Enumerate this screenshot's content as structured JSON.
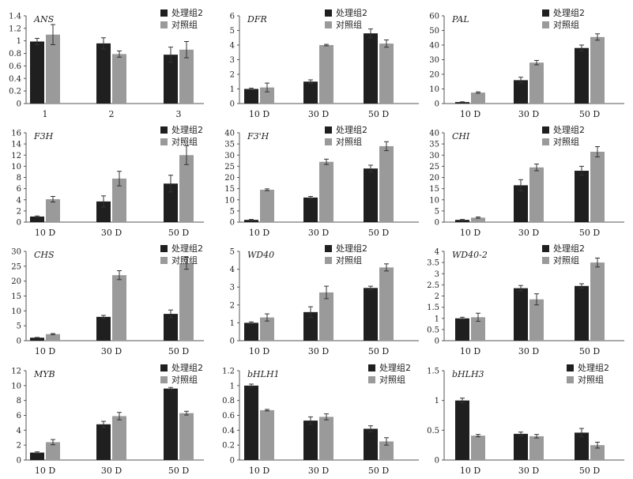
{
  "figure_title": "",
  "colors": {
    "treatment": "#1f1f1f",
    "control": "#9a9a9a",
    "axis": "#555555",
    "error": "#333333"
  },
  "chart_data": [
    {
      "type": "bar",
      "gene": "ANS",
      "categories": [
        "1",
        "2",
        "3"
      ],
      "yticks": [
        "0",
        "0.2",
        "0.4",
        "0.6",
        "0.8",
        "1",
        "1.2",
        "1.4"
      ],
      "ylim": [
        0,
        1.4
      ],
      "series": [
        {
          "name": "处理组2",
          "values": [
            0.99,
            0.96,
            0.78
          ],
          "errors": [
            0.05,
            0.09,
            0.12
          ]
        },
        {
          "name": "对照组",
          "values": [
            1.1,
            0.79,
            0.86
          ],
          "errors": [
            0.16,
            0.05,
            0.13
          ]
        }
      ]
    },
    {
      "type": "bar",
      "gene": "DFR",
      "categories": [
        "10 D",
        "30 D",
        "50 D"
      ],
      "yticks": [
        "0",
        "1",
        "2",
        "3",
        "4",
        "5",
        "6"
      ],
      "ylim": [
        0,
        6
      ],
      "series": [
        {
          "name": "处理组2",
          "values": [
            1.0,
            1.5,
            4.8
          ],
          "errors": [
            0.05,
            0.12,
            0.3
          ]
        },
        {
          "name": "对照组",
          "values": [
            1.1,
            4.0,
            4.1
          ],
          "errors": [
            0.3,
            0.05,
            0.25
          ]
        }
      ]
    },
    {
      "type": "bar",
      "gene": "PAL",
      "categories": [
        "10 D",
        "30 D",
        "50 D"
      ],
      "yticks": [
        "0",
        "10",
        "20",
        "30",
        "40",
        "50",
        "60"
      ],
      "ylim": [
        0,
        60
      ],
      "series": [
        {
          "name": "处理组2",
          "values": [
            1.0,
            16.0,
            38.0
          ],
          "errors": [
            0.2,
            2.0,
            2.0
          ]
        },
        {
          "name": "对照组",
          "values": [
            7.5,
            28.0,
            45.5
          ],
          "errors": [
            0.5,
            1.5,
            2.2
          ]
        }
      ]
    },
    {
      "type": "bar",
      "gene": "F3H",
      "categories": [
        "10 D",
        "30 D",
        "50 D"
      ],
      "yticks": [
        "0",
        "2",
        "4",
        "6",
        "8",
        "10",
        "12",
        "14",
        "16"
      ],
      "ylim": [
        0,
        16
      ],
      "series": [
        {
          "name": "处理组2",
          "values": [
            1.0,
            3.7,
            6.9
          ],
          "errors": [
            0.1,
            1.0,
            1.5
          ]
        },
        {
          "name": "对照组",
          "values": [
            4.1,
            7.8,
            12.0
          ],
          "errors": [
            0.5,
            1.3,
            1.7
          ]
        }
      ]
    },
    {
      "type": "bar",
      "gene": "F3'H",
      "categories": [
        "10 D",
        "30 D",
        "50 D"
      ],
      "yticks": [
        "0",
        "5",
        "10",
        "15",
        "20",
        "25",
        "30",
        "35",
        "40"
      ],
      "ylim": [
        0,
        40
      ],
      "series": [
        {
          "name": "处理组2",
          "values": [
            1.0,
            11.0,
            24.0
          ],
          "errors": [
            0.2,
            0.5,
            1.5
          ]
        },
        {
          "name": "对照组",
          "values": [
            14.5,
            27.0,
            34.0
          ],
          "errors": [
            0.4,
            1.2,
            2.0
          ]
        }
      ]
    },
    {
      "type": "bar",
      "gene": "CHI",
      "categories": [
        "10 D",
        "30 D",
        "50 D"
      ],
      "yticks": [
        "0",
        "5",
        "10",
        "15",
        "20",
        "25",
        "30",
        "35",
        "40"
      ],
      "ylim": [
        0,
        40
      ],
      "series": [
        {
          "name": "处理组2",
          "values": [
            1.0,
            16.5,
            23.0
          ],
          "errors": [
            0.2,
            2.5,
            2.0
          ]
        },
        {
          "name": "对照组",
          "values": [
            2.0,
            24.5,
            31.5
          ],
          "errors": [
            0.3,
            1.5,
            2.3
          ]
        }
      ]
    },
    {
      "type": "bar",
      "gene": "CHS",
      "categories": [
        "10 D",
        "30 D",
        "50 D"
      ],
      "yticks": [
        "0",
        "5",
        "10",
        "15",
        "20",
        "25",
        "30"
      ],
      "ylim": [
        0,
        30
      ],
      "series": [
        {
          "name": "处理组2",
          "values": [
            1.0,
            8.0,
            9.0
          ],
          "errors": [
            0.1,
            0.5,
            1.3
          ]
        },
        {
          "name": "对照组",
          "values": [
            2.2,
            22.0,
            26.0
          ],
          "errors": [
            0.2,
            1.5,
            2.0
          ]
        }
      ]
    },
    {
      "type": "bar",
      "gene": "WD40",
      "categories": [
        "10 D",
        "30 D",
        "50 D"
      ],
      "yticks": [
        "0",
        "1",
        "2",
        "3",
        "4",
        "5"
      ],
      "ylim": [
        0,
        5
      ],
      "series": [
        {
          "name": "处理组2",
          "values": [
            1.0,
            1.6,
            2.95
          ],
          "errors": [
            0.05,
            0.3,
            0.1
          ]
        },
        {
          "name": "对照组",
          "values": [
            1.3,
            2.7,
            4.1
          ],
          "errors": [
            0.2,
            0.35,
            0.2
          ]
        }
      ]
    },
    {
      "type": "bar",
      "gene": "WD40-2",
      "categories": [
        "10 D",
        "30 D",
        "50 D"
      ],
      "yticks": [
        "0",
        "0.5",
        "1",
        "1.5",
        "2",
        "2.5",
        "3",
        "3.5",
        "4"
      ],
      "ylim": [
        0,
        4
      ],
      "series": [
        {
          "name": "处理组2",
          "values": [
            1.0,
            2.35,
            2.45
          ],
          "errors": [
            0.05,
            0.12,
            0.1
          ]
        },
        {
          "name": "对照组",
          "values": [
            1.05,
            1.85,
            3.5
          ],
          "errors": [
            0.18,
            0.25,
            0.2
          ]
        }
      ]
    },
    {
      "type": "bar",
      "gene": "MYB",
      "categories": [
        "10 D",
        "30 D",
        "50 D"
      ],
      "yticks": [
        "0",
        "2",
        "4",
        "6",
        "8",
        "10",
        "12"
      ],
      "ylim": [
        0,
        12
      ],
      "series": [
        {
          "name": "处理组2",
          "values": [
            1.0,
            4.8,
            9.6
          ],
          "errors": [
            0.1,
            0.4,
            0.15
          ]
        },
        {
          "name": "对照组",
          "values": [
            2.4,
            5.9,
            6.3
          ],
          "errors": [
            0.35,
            0.5,
            0.25
          ]
        }
      ]
    },
    {
      "type": "bar",
      "gene": "bHLH1",
      "categories": [
        "10 D",
        "30 D",
        "50 D"
      ],
      "yticks": [
        "0",
        "0.2",
        "0.4",
        "0.6",
        "0.8",
        "1",
        "1.2"
      ],
      "ylim": [
        0,
        1.2
      ],
      "series": [
        {
          "name": "处理组2",
          "values": [
            1.0,
            0.53,
            0.42
          ],
          "errors": [
            0.02,
            0.05,
            0.04
          ]
        },
        {
          "name": "对照组",
          "values": [
            0.67,
            0.58,
            0.25
          ],
          "errors": [
            0.01,
            0.04,
            0.05
          ]
        }
      ]
    },
    {
      "type": "bar",
      "gene": "bHLH3",
      "categories": [
        "10 D",
        "30 D",
        "50 D"
      ],
      "yticks": [
        "0",
        "0.5",
        "1",
        "1.5"
      ],
      "ylim": [
        0,
        1.5
      ],
      "series": [
        {
          "name": "处理组2",
          "values": [
            1.0,
            0.44,
            0.46
          ],
          "errors": [
            0.04,
            0.03,
            0.07
          ]
        },
        {
          "name": "对照组",
          "values": [
            0.41,
            0.4,
            0.25
          ],
          "errors": [
            0.02,
            0.03,
            0.05
          ]
        }
      ]
    }
  ]
}
